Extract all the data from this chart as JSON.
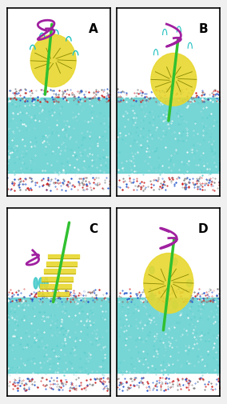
{
  "figsize": [
    2.84,
    5.05
  ],
  "dpi": 100,
  "bg_color": "#f0f0f0",
  "panel_bg": "#ffffff",
  "labels": [
    "A",
    "B",
    "C",
    "D"
  ],
  "label_fontsize": 11,
  "panel_border_color": "#000000",
  "panel_border_lw": 1.2,
  "membrane_cyan_color": "#5ecece",
  "membrane_lipid_color": "#d44",
  "protein_yellow": "#e8d830",
  "protein_purple": "#a020a0",
  "protein_cyan": "#20c0c0",
  "helix_green": "#30c030",
  "water_color": "#daf0f8",
  "noise_dot_colors": [
    "#cc2222",
    "#2222cc",
    "#888888",
    "#ffffff"
  ]
}
